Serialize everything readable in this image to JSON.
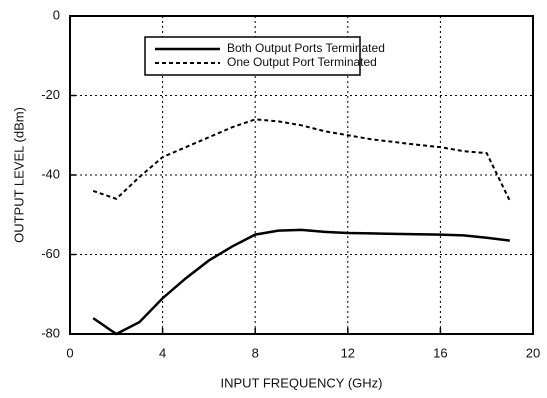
{
  "chart_data": {
    "type": "line",
    "xlabel": "INPUT FREQUENCY (GHz)",
    "ylabel": "OUTPUT LEVEL (dBm)",
    "x": [
      1,
      2,
      3,
      4,
      5,
      6,
      7,
      8,
      9,
      10,
      11,
      12,
      13,
      14,
      15,
      16,
      17,
      18,
      19
    ],
    "series": [
      {
        "name": "Both Output Ports Terminated",
        "color": "#000000",
        "style": "solid",
        "values": [
          -76,
          -80,
          -77,
          -71,
          -66,
          -61.5,
          -58,
          -55,
          -54,
          -53.8,
          -54.3,
          -54.6,
          -54.7,
          -54.8,
          -54.9,
          -55,
          -55.2,
          -55.8,
          -56.5
        ]
      },
      {
        "name": "One Output Port Terminated",
        "color": "#000000",
        "style": "dashed",
        "values": [
          -44,
          -46,
          -40.5,
          -35.5,
          -33,
          -30.5,
          -28,
          -26,
          -26.5,
          -27.5,
          -29,
          -30,
          -31,
          -31.7,
          -32.4,
          -33,
          -34,
          -34.5,
          -46.5
        ]
      }
    ],
    "xlim": [
      0,
      20
    ],
    "xticks": [
      0,
      4,
      8,
      12,
      16,
      20
    ],
    "ylim": [
      -80,
      0
    ],
    "yticks": [
      0,
      -20,
      -40,
      -60,
      -80
    ],
    "grid": true
  }
}
